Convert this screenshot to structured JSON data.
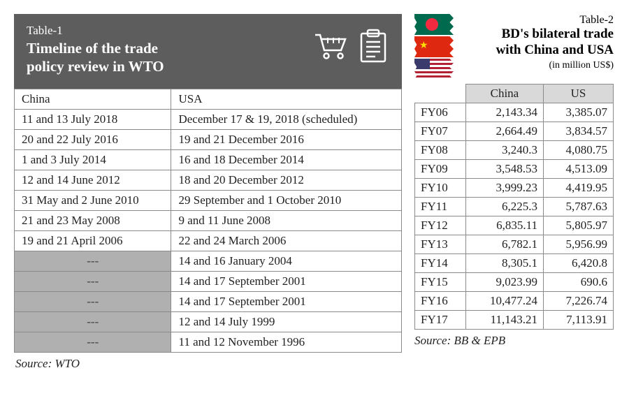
{
  "table1": {
    "label": "Table-1",
    "title_line1": "Timeline of the trade",
    "title_line2": "policy review in WTO",
    "columns": [
      "China",
      "USA"
    ],
    "rows": [
      {
        "china": "11 and 13 July 2018",
        "usa": "December 17 & 19, 2018 (scheduled)"
      },
      {
        "china": "20 and 22 July 2016",
        "usa": "19 and 21 December 2016"
      },
      {
        "china": "1 and 3 July 2014",
        "usa": "16 and 18 December 2014"
      },
      {
        "china": "12 and 14 June 2012",
        "usa": "18 and 20 December 2012"
      },
      {
        "china": "31 May and 2 June 2010",
        "usa": "29 September and 1 October 2010"
      },
      {
        "china": "21 and 23 May 2008",
        "usa": "9 and 11 June 2008"
      },
      {
        "china": "19 and 21 April 2006",
        "usa": "22 and 24 March 2006"
      },
      {
        "china": "---",
        "usa": "14 and 16 January 2004",
        "blank": true
      },
      {
        "china": "---",
        "usa": "14 and 17 September 2001",
        "blank": true
      },
      {
        "china": "---",
        "usa": "14 and 17 September 2001",
        "blank": true
      },
      {
        "china": "---",
        "usa": "12 and 14 July 1999",
        "blank": true
      },
      {
        "china": "---",
        "usa": "11 and 12 November 1996",
        "blank": true
      }
    ],
    "source": "Source: WTO",
    "header_bg": "#5d5d5d",
    "blank_bg": "#b0b0b0",
    "border_color": "#8a8a8a"
  },
  "table2": {
    "label": "Table-2",
    "title_line1": "BD's bilateral trade",
    "title_line2": "with China and USA",
    "unit": "(in million US$)",
    "columns": [
      "China",
      "US"
    ],
    "rows": [
      {
        "fy": "FY06",
        "china": "2,143.34",
        "us": "3,385.07"
      },
      {
        "fy": "FY07",
        "china": "2,664.49",
        "us": "3,834.57"
      },
      {
        "fy": "FY08",
        "china": "3,240.3",
        "us": "4,080.75"
      },
      {
        "fy": "FY09",
        "china": "3,548.53",
        "us": "4,513.09"
      },
      {
        "fy": "FY10",
        "china": "3,999.23",
        "us": "4,419.95"
      },
      {
        "fy": "FY11",
        "china": "6,225.3",
        "us": "5,787.63"
      },
      {
        "fy": "FY12",
        "china": "6,835.11",
        "us": "5,805.97"
      },
      {
        "fy": "FY13",
        "china": "6,782.1",
        "us": "5,956.99"
      },
      {
        "fy": "FY14",
        "china": "8,305.1",
        "us": "6,420.8"
      },
      {
        "fy": "FY15",
        "china": "9,023.99",
        "us": "690.6"
      },
      {
        "fy": "FY16",
        "china": "10,477.24",
        "us": "7,226.74"
      },
      {
        "fy": "FY17",
        "china": "11,143.21",
        "us": "7,113.91"
      }
    ],
    "source": "Source: BB & EPB",
    "header_cell_bg": "#d9d9d9",
    "border_color": "#8a8a8a"
  },
  "colors": {
    "text": "#222222",
    "background": "#ffffff"
  }
}
